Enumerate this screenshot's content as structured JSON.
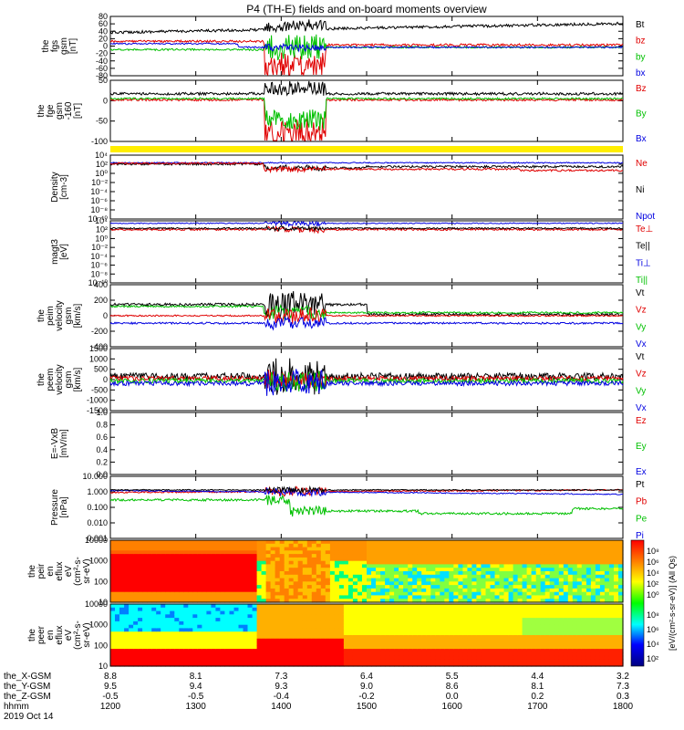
{
  "title": "P4 (TH-E) fields and on-board moments overview",
  "colors": {
    "black": "#000000",
    "red": "#e00000",
    "green": "#00c000",
    "blue": "#0000e0",
    "yellow": "#ffee00"
  },
  "chart_data": [
    {
      "type": "line",
      "id": "fgs",
      "ylabel": [
        "the",
        "fgs",
        "gsm",
        "[nT]"
      ],
      "yticks": [
        "80",
        "60",
        "40",
        "20",
        "0",
        "-20",
        "-40",
        "-60",
        "-80"
      ],
      "legend": [
        "Bt",
        "bz",
        "by",
        "bx"
      ],
      "legend_colors": [
        "#000000",
        "#e00000",
        "#00c000",
        "#0000e0"
      ]
    },
    {
      "type": "line",
      "id": "fge",
      "ylabel": [
        "the",
        "fge",
        "gsm",
        "-160",
        "[nT]"
      ],
      "yticks": [
        "50",
        "0",
        "-50",
        "-100"
      ],
      "legend": [
        "Bz",
        "By",
        "Bx"
      ],
      "legend_colors": [
        "#e00000",
        "#00c000",
        "#0000e0"
      ]
    },
    {
      "type": "line",
      "id": "density",
      "ylabel": [
        "Density",
        "[cm-3]"
      ],
      "yticks": [
        "10⁴",
        "10²",
        "10⁰",
        "10⁻²",
        "10⁻⁴",
        "10⁻⁶",
        "10⁻⁸",
        "10⁻¹⁰"
      ],
      "legend": [
        "Ne",
        "Ni",
        "Npot"
      ],
      "legend_colors": [
        "#e00000",
        "#000000",
        "#0000e0"
      ]
    },
    {
      "type": "line",
      "id": "temperature",
      "ylabel": [
        "magt3",
        "[eV]"
      ],
      "yticks": [
        "10⁴",
        "10²",
        "10⁰",
        "10⁻²",
        "10⁻⁴",
        "10⁻⁶",
        "10⁻⁸",
        "10⁻¹⁰"
      ],
      "legend": [
        "Te⊥",
        "Te||",
        "Ti⊥",
        "Ti||"
      ],
      "legend_colors": [
        "#e00000",
        "#000000",
        "#0000e0",
        "#00c000"
      ]
    },
    {
      "type": "line",
      "id": "peim",
      "ylabel": [
        "the",
        "peim",
        "velocity",
        "gsm",
        "[km/s]"
      ],
      "yticks": [
        "400",
        "200",
        "0",
        "-200",
        "-400"
      ],
      "legend": [
        "Vt",
        "Vz",
        "Vy",
        "Vx"
      ],
      "legend_colors": [
        "#000000",
        "#e00000",
        "#00c000",
        "#0000e0"
      ]
    },
    {
      "type": "line",
      "id": "peem",
      "ylabel": [
        "the",
        "peem",
        "velocity",
        "gsm",
        "[km/s]"
      ],
      "yticks": [
        "1500",
        "1000",
        "500",
        "0",
        "-500",
        "-1000",
        "-1500"
      ],
      "legend": [
        "Vt",
        "Vz",
        "Vy",
        "Vx"
      ],
      "legend_colors": [
        "#000000",
        "#e00000",
        "#00c000",
        "#0000e0"
      ]
    },
    {
      "type": "line",
      "id": "efield",
      "ylabel": [
        "E=-VxB",
        "[mV/m]"
      ],
      "yticks": [
        "1.0",
        "0.8",
        "0.6",
        "0.4",
        "0.2",
        "0.0"
      ],
      "legend": [
        "Ez",
        "Ey",
        "Ex"
      ],
      "legend_colors": [
        "#e00000",
        "#00c000",
        "#0000e0"
      ]
    },
    {
      "type": "line",
      "id": "pressure",
      "ylabel": [
        "Pressure",
        "[nPa]"
      ],
      "yticks": [
        "10.000",
        "1.000",
        "0.100",
        "0.010",
        "0.001"
      ],
      "legend": [
        "Pt",
        "Pb",
        "Pe",
        "Pi"
      ],
      "legend_colors": [
        "#000000",
        "#e00000",
        "#00c000",
        "#0000e0"
      ]
    },
    {
      "type": "heatmap",
      "id": "peir",
      "ylabel": [
        "the",
        "peir",
        "en",
        "eflux",
        "eV",
        "(cm²-s-",
        "sr-eV)"
      ],
      "yticks": [
        "10000",
        "1000",
        "100",
        "10"
      ],
      "colorbar_ticks": [
        "10⁸",
        "10⁶",
        "10⁴",
        "10²",
        "10⁰"
      ]
    },
    {
      "type": "heatmap",
      "id": "peer",
      "ylabel": [
        "the",
        "peer",
        "en",
        "eflux",
        "eV",
        "(cm²-s-",
        "sr-eV)"
      ],
      "yticks": [
        "10000",
        "1000",
        "100",
        "10"
      ],
      "colorbar_ticks": [
        "10⁸",
        "10⁶",
        "10⁴",
        "10²"
      ]
    }
  ],
  "colorbar_label": "[eV/(cm²-s-sr-eV)] (All Qs)",
  "x_axis": {
    "row_labels": [
      "the_X-GSM",
      "the_Y-GSM",
      "the_Z-GSM",
      "hhmm"
    ],
    "date": "2019 Oct 14",
    "x_gsm": [
      "8.8",
      "8.1",
      "7.3",
      "6.4",
      "5.5",
      "4.4",
      "3.2"
    ],
    "y_gsm": [
      "9.5",
      "9.4",
      "9.3",
      "9.0",
      "8.6",
      "8.1",
      "7.3"
    ],
    "z_gsm": [
      "-0.5",
      "-0.5",
      "-0.4",
      "-0.2",
      "0.0",
      "0.2",
      "0.3"
    ],
    "hhmm": [
      "1200",
      "1300",
      "1400",
      "1500",
      "1600",
      "1700",
      "1800"
    ]
  }
}
